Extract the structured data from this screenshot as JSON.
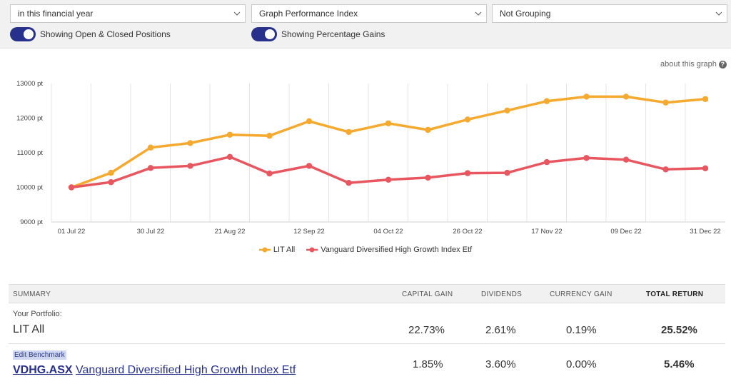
{
  "controls": {
    "period_select": "in this financial year",
    "graph_select": "Graph Performance Index",
    "grouping_select": "Not Grouping",
    "toggle_positions_label": "Showing Open & Closed Positions",
    "toggle_gains_label": "Showing Percentage Gains",
    "toggle_positions_on": true,
    "toggle_gains_on": true
  },
  "about_link": "about this graph",
  "colors": {
    "toggle_on": "#27308a",
    "series_portfolio": "#f5a92f",
    "series_benchmark": "#e8575f",
    "link": "#27308a"
  },
  "chart_data": {
    "type": "line",
    "y_unit": "pt",
    "ylim": [
      9000,
      13000
    ],
    "y_ticks": [
      "9000 pt",
      "10000 pt",
      "11000 pt",
      "12000 pt",
      "13000 pt"
    ],
    "x_ticks": [
      "01 Jul 22",
      "30 Jul 22",
      "21 Aug 22",
      "12 Sep 22",
      "04 Oct 22",
      "26 Oct 22",
      "17 Nov 22",
      "09 Dec 22",
      "31 Dec 22"
    ],
    "series": [
      {
        "name": "LIT All",
        "color": "#f5a92f",
        "values": [
          10000,
          10420,
          11150,
          11280,
          11520,
          11490,
          11910,
          11600,
          11850,
          11660,
          11960,
          12220,
          12490,
          12620,
          12620,
          12450,
          12550
        ]
      },
      {
        "name": "Vanguard Diversified High Growth Index Etf",
        "color": "#e8575f",
        "values": [
          10000,
          10150,
          10560,
          10620,
          10880,
          10400,
          10620,
          10130,
          10220,
          10280,
          10410,
          10420,
          10730,
          10850,
          10800,
          10520,
          10550
        ]
      }
    ],
    "legend_position": "bottom-center",
    "grid": "vertical"
  },
  "summary": {
    "headers": {
      "summary": "SUMMARY",
      "capital_gain": "CAPITAL GAIN",
      "dividends": "DIVIDENDS",
      "currency_gain": "CURRENCY GAIN",
      "total_return": "TOTAL RETURN"
    },
    "portfolio": {
      "label": "Your Portfolio:",
      "name": "LIT All",
      "capital_gain": "22.73%",
      "dividends": "2.61%",
      "currency_gain": "0.19%",
      "total_return": "25.52%"
    },
    "benchmark": {
      "edit_label": "Edit Benchmark",
      "ticker": "VDHG.ASX",
      "name": "Vanguard Diversified High Growth Index Etf",
      "capital_gain": "1.85%",
      "dividends": "3.60%",
      "currency_gain": "0.00%",
      "total_return": "5.46%"
    }
  }
}
